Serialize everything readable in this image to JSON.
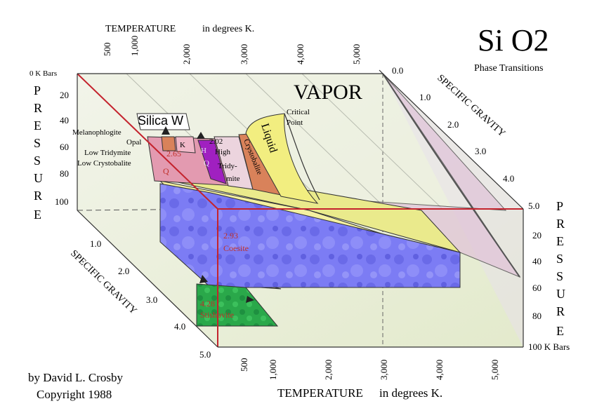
{
  "title": "Si O2",
  "subtitle": "Phase Transitions",
  "top_axis": {
    "label": "TEMPERATURE",
    "unit": "in degrees K.",
    "ticks": [
      "500",
      "1,000",
      "2,000",
      "3,000",
      "4,000",
      "5,000"
    ]
  },
  "bottom_axis": {
    "label": "TEMPERATURE",
    "unit": "in degrees K.",
    "ticks": [
      "500",
      "1,000",
      "2,000",
      "3,000",
      "4,000",
      "5,000"
    ]
  },
  "left_pressure": {
    "letters": [
      "P",
      "R",
      "E",
      "S",
      "S",
      "U",
      "R",
      "E"
    ],
    "top_label": "0 K Bars",
    "ticks": [
      "20",
      "40",
      "60",
      "80",
      "100"
    ]
  },
  "right_pressure": {
    "letters": [
      "P",
      "R",
      "E",
      "S",
      "S",
      "U",
      "R",
      "E"
    ],
    "ticks": [
      "20",
      "40",
      "60",
      "80"
    ],
    "bottom_label": "100 K Bars"
  },
  "upper_specific_gravity": {
    "label": "SPECIFIC GRAVITY",
    "ticks": [
      "0.0",
      "1.0",
      "2.0",
      "3.0",
      "4.0",
      "5.0"
    ]
  },
  "lower_specific_gravity": {
    "label": "SPECIFIC GRAVITY",
    "ticks": [
      "1.0",
      "2.0",
      "3.0",
      "4.0",
      "5.0"
    ]
  },
  "phases": {
    "vapor": "VAPOR",
    "critical_point": [
      "Critical",
      "Point"
    ],
    "liquid": "Liquid",
    "silica_w": "Silica W",
    "melanophlogite": "Melanophlogite",
    "opal": "Opal",
    "low_tridymite": "Low Tridymite",
    "low_crystobalite": "Low Crystobalite",
    "high_tridymite": [
      "2.02",
      "High",
      "Tridy-",
      "mite"
    ],
    "crystobalite": "Crystobalite",
    "low_quartz": [
      "2.65",
      "Q"
    ],
    "high_quartz": [
      "H",
      "Q"
    ],
    "small_k": "K",
    "coesite": [
      "2.93",
      "Coesite"
    ],
    "stishovite": [
      "4.28",
      "Stishovite"
    ]
  },
  "credit": {
    "line1": "by David L. Crosby",
    "line2": "Copyright 1988"
  },
  "colors": {
    "frame_red": "#c4232d",
    "coesite_blue": "#7070f0",
    "stishovite_green": "#2aa84a",
    "liquid_yellow": "#f2ee80",
    "crystobalite_brown": "#d9825a",
    "quartz_pink": "#e39ab0",
    "high_quartz_purple": "#a020c0",
    "background_tint": "#e6ecd2"
  }
}
